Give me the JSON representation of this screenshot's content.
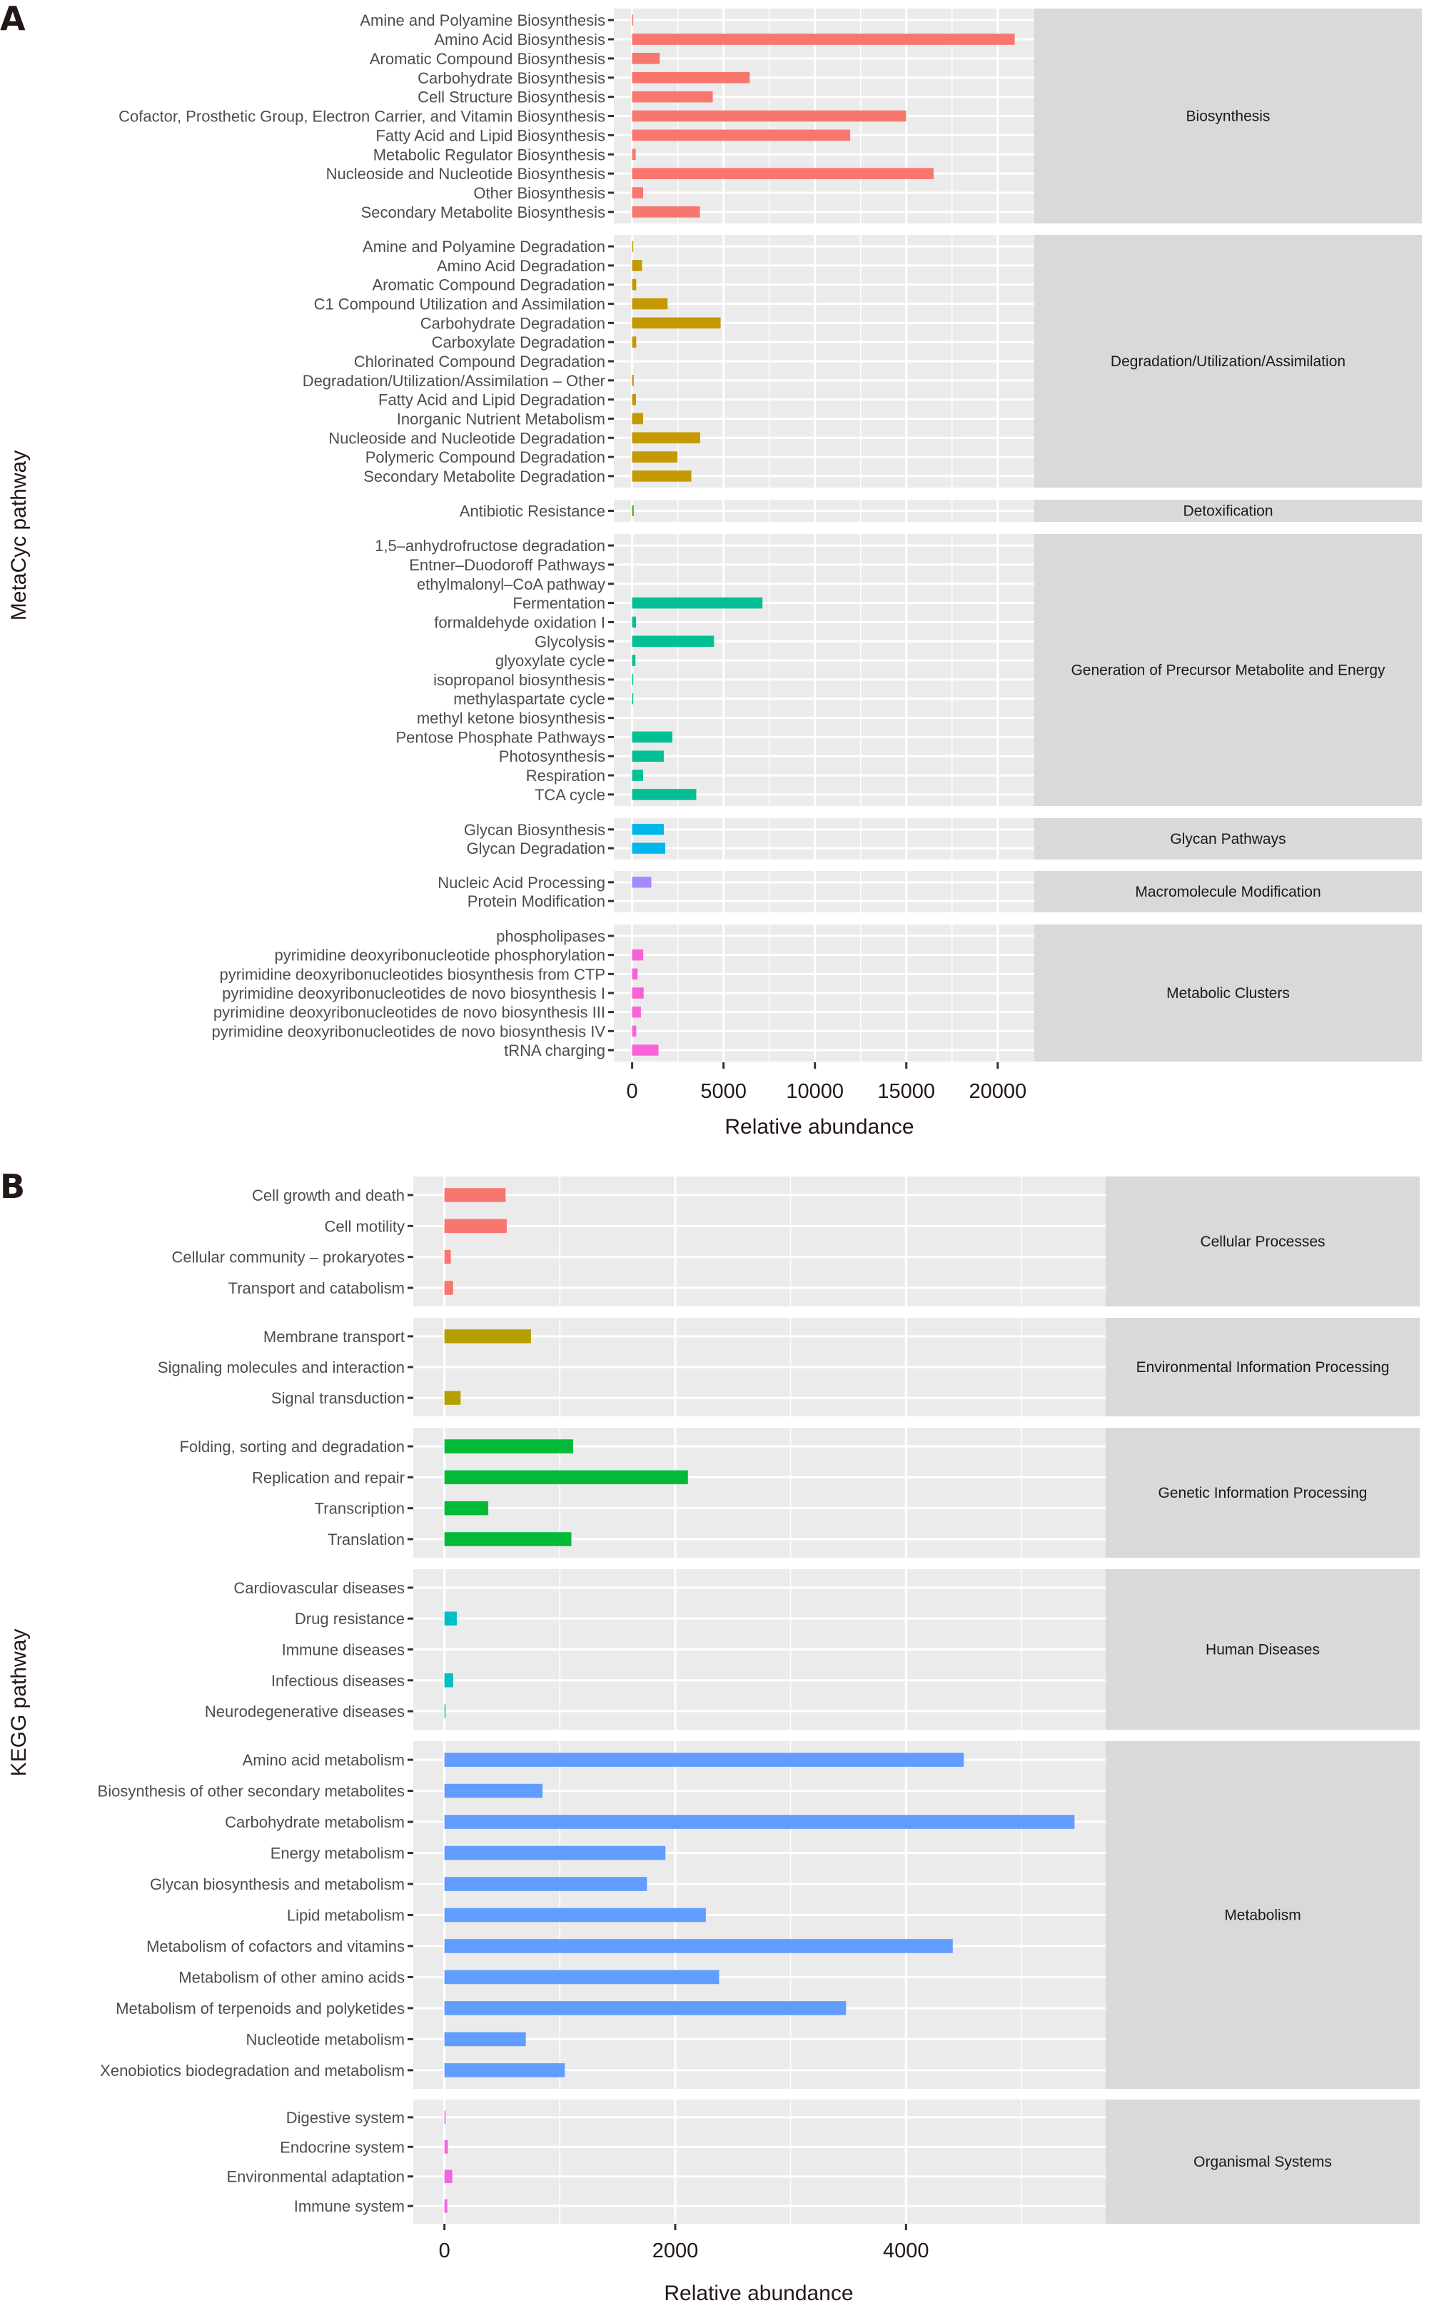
{
  "chart_data": [
    {
      "panel": "A",
      "type": "bar",
      "orientation": "horizontal",
      "faceted": true,
      "xlabel": "Relative abundance",
      "ylabel": "MetaCyc pathway",
      "xlim": [
        -1000,
        22000
      ],
      "xticks": [
        0,
        5000,
        10000,
        15000,
        20000
      ],
      "xtick_labels": [
        "0",
        "5000",
        "10000",
        "15000",
        "20000"
      ],
      "grid": true,
      "legend": "none",
      "facets": [
        {
          "name": "Biosynthesis",
          "color": "#F8766D",
          "categories": [
            "Amine and Polyamine Biosynthesis",
            "Amino Acid Biosynthesis",
            "Aromatic Compound Biosynthesis",
            "Carbohydrate Biosynthesis",
            "Cell Structure Biosynthesis",
            "Cofactor, Prosthetic Group, Electron Carrier, and Vitamin Biosynthesis",
            "Fatty Acid and Lipid Biosynthesis",
            "Metabolic Regulator Biosynthesis",
            "Nucleoside and Nucleotide Biosynthesis",
            "Other Biosynthesis",
            "Secondary Metabolite Biosynthesis"
          ],
          "values": [
            40,
            20930,
            1510,
            6430,
            4410,
            14990,
            11930,
            195,
            16490,
            600,
            3710
          ]
        },
        {
          "name": "Degradation/Utilization/Assimilation",
          "color": "#C49A00",
          "categories": [
            "Amine and Polyamine Degradation",
            "Amino Acid Degradation",
            "Aromatic Compound Degradation",
            "C1 Compound Utilization and Assimilation",
            "Carbohydrate Degradation",
            "Carboxylate Degradation",
            "Chlorinated Compound Degradation",
            "Degradation/Utilization/Assimilation – Other",
            "Fatty Acid and Lipid Degradation",
            "Inorganic Nutrient Metabolism",
            "Nucleoside and Nucleotide Degradation",
            "Polymeric Compound Degradation",
            "Secondary Metabolite Degradation"
          ],
          "values": [
            20,
            540,
            225,
            1940,
            4840,
            225,
            0,
            90,
            210,
            600,
            3720,
            2480,
            3240
          ]
        },
        {
          "name": "Detoxification",
          "color": "#53B400",
          "categories": [
            "Antibiotic Resistance"
          ],
          "values": [
            90
          ]
        },
        {
          "name": "Generation of Precursor Metabolite and Energy",
          "color": "#00C094",
          "categories": [
            "1,5–anhydrofructose degradation",
            "Entner–Duodoroff Pathways",
            "ethylmalonyl–CoA pathway",
            "Fermentation",
            "formaldehyde oxidation I",
            "Glycolysis",
            "glyoxylate cycle",
            "isopropanol biosynthesis",
            "methylaspartate cycle",
            "methyl ketone biosynthesis",
            "Pentose Phosphate Pathways",
            "Photosynthesis",
            "Respiration",
            "TCA cycle"
          ],
          "values": [
            0,
            0,
            0,
            7130,
            210,
            4480,
            180,
            20,
            10,
            0,
            2200,
            1730,
            600,
            3510
          ]
        },
        {
          "name": "Glycan Pathways",
          "color": "#00B6EB",
          "categories": [
            "Glycan Biosynthesis",
            "Glycan Degradation"
          ],
          "values": [
            1730,
            1810
          ]
        },
        {
          "name": "Macromolecule Modification",
          "color": "#A58AFF",
          "categories": [
            "Nucleic Acid Processing",
            "Protein Modification"
          ],
          "values": [
            1050,
            0
          ]
        },
        {
          "name": "Metabolic Clusters",
          "color": "#FB61D7",
          "categories": [
            "phospholipases",
            "pyrimidine deoxyribonucleotide phosphorylation",
            "pyrimidine deoxyribonucleotides biosynthesis from CTP",
            "pyrimidine deoxyribonucleotides de novo biosynthesis I",
            "pyrimidine deoxyribonucleotides de novo biosynthesis III",
            "pyrimidine deoxyribonucleotides de novo biosynthesis IV",
            "tRNA charging"
          ],
          "values": [
            0,
            610,
            300,
            630,
            480,
            225,
            1440
          ]
        }
      ]
    },
    {
      "panel": "B",
      "type": "bar",
      "orientation": "horizontal",
      "faceted": true,
      "xlabel": "Relative abundance",
      "ylabel": "KEGG pathway",
      "xlim": [
        -270,
        5730
      ],
      "xticks": [
        0,
        2000,
        4000
      ],
      "xtick_labels": [
        "0",
        "2000",
        "4000"
      ],
      "grid": true,
      "legend": "none",
      "facets": [
        {
          "name": "Cellular Processes",
          "color": "#F8766D",
          "categories": [
            "Cell growth and death",
            "Cell motility",
            "Cellular community – prokaryotes",
            "Transport and catabolism"
          ],
          "values": [
            530,
            540,
            55,
            75
          ]
        },
        {
          "name": "Environmental Information Processing",
          "color": "#B79F00",
          "categories": [
            "Membrane transport",
            "Signaling molecules and interaction",
            "Signal transduction"
          ],
          "values": [
            750,
            0,
            140
          ]
        },
        {
          "name": "Genetic Information Processing",
          "color": "#00BA38",
          "categories": [
            "Folding, sorting and degradation",
            "Replication and repair",
            "Transcription",
            "Translation"
          ],
          "values": [
            1115,
            2110,
            380,
            1100
          ]
        },
        {
          "name": "Human Diseases",
          "color": "#00BFC4",
          "categories": [
            "Cardiovascular diseases",
            "Drug resistance",
            "Immune diseases",
            "Infectious diseases",
            "Neurodegenerative diseases"
          ],
          "values": [
            0,
            107,
            0,
            75,
            5
          ]
        },
        {
          "name": "Metabolism",
          "color": "#619CFF",
          "categories": [
            "Amino acid metabolism",
            "Biosynthesis of other secondary metabolites",
            "Carbohydrate metabolism",
            "Energy metabolism",
            "Glycan biosynthesis and metabolism",
            "Lipid metabolism",
            "Metabolism of cofactors and vitamins",
            "Metabolism of other amino acids",
            "Metabolism of terpenoids and polyketides",
            "Nucleotide metabolism",
            "Xenobiotics biodegradation and metabolism"
          ],
          "values": [
            4500,
            850,
            5460,
            1915,
            1755,
            2265,
            4405,
            2380,
            3480,
            705,
            1043
          ]
        },
        {
          "name": "Organismal Systems",
          "color": "#F564E3",
          "categories": [
            "Digestive system",
            "Endocrine system",
            "Environmental adaptation",
            "Immune system"
          ],
          "values": [
            10,
            30,
            68,
            25
          ]
        }
      ]
    }
  ],
  "labels": {
    "panel_a": "A",
    "panel_b": "B"
  }
}
